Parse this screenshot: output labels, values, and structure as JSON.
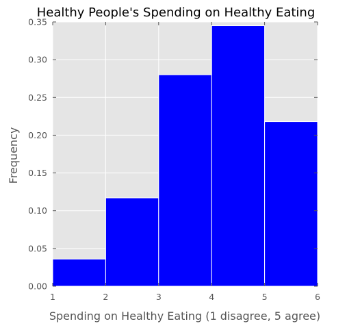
{
  "chart_data": {
    "type": "bar",
    "title": "Healthy People's Spending on Healthy Eating",
    "xlabel": "Spending on Healthy Eating (1 disagree, 5 agree)",
    "ylabel": "Frequency",
    "bin_edges": [
      1,
      2,
      3,
      4,
      5,
      6
    ],
    "values": [
      0.036,
      0.117,
      0.28,
      0.345,
      0.218
    ],
    "xlim": [
      1,
      6
    ],
    "ylim": [
      0,
      0.35
    ],
    "xticks": [
      "1",
      "2",
      "3",
      "4",
      "5",
      "6"
    ],
    "yticks": [
      "0.00",
      "0.05",
      "0.10",
      "0.15",
      "0.20",
      "0.25",
      "0.30",
      "0.35"
    ],
    "grid": true,
    "bar_color": "#0000ff",
    "background_color": "#e5e5e5",
    "grid_color": "#ffffff"
  }
}
